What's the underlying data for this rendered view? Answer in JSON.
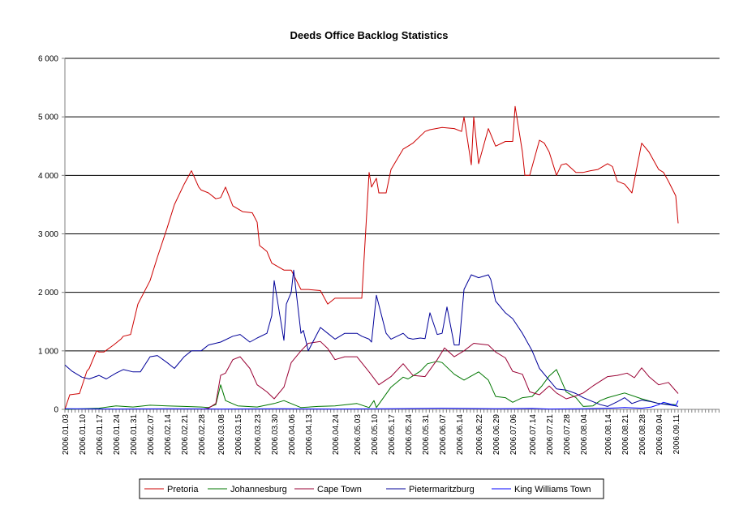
{
  "chart_data": {
    "type": "line",
    "title": "Deeds Office Backlog Statistics",
    "xlabel": "",
    "ylabel": "",
    "ylim": [
      0,
      6000
    ],
    "yticks": [
      0,
      1000,
      2000,
      3000,
      4000,
      5000,
      6000
    ],
    "ytick_labels": [
      "0",
      "1 000",
      "2 000",
      "3 000",
      "4 000",
      "5 000",
      "6 000"
    ],
    "xlim": [
      "2006.01.03",
      "2006.09.29"
    ],
    "xtick_labels": [
      "2006.01.03",
      "2006.01.10",
      "2006.01.17",
      "2006.01.24",
      "2006.01.31",
      "2006.02.07",
      "2006.02.14",
      "2006.02.21",
      "2006.02.28",
      "2006.03.08",
      "2006.03.15",
      "2006.03.23",
      "2006.03.30",
      "2006.04.06",
      "2006.04.13",
      "2006.04.24",
      "2006.05.03",
      "2006.05.10",
      "2006.05.17",
      "2006.05.24",
      "2006.05.31",
      "2006.06.07",
      "2006.06.14",
      "2006.06.22",
      "2006.06.29",
      "2006.07.06",
      "2006.07.14",
      "2006.07.21",
      "2006.07.28",
      "2006.08.04",
      "2006.08.14",
      "2006.08.21",
      "2006.08.28",
      "2006.09.04",
      "2006.09.11"
    ],
    "grid": "horizontal",
    "legend": "bottom",
    "series": [
      {
        "name": "Pretoria",
        "color": "#cc0000",
        "x": [
          "2006.01.03",
          "2006.01.05",
          "2006.01.09",
          "2006.01.12",
          "2006.01.13",
          "2006.01.16",
          "2006.01.17",
          "2006.01.19",
          "2006.01.23",
          "2006.01.26",
          "2006.01.27",
          "2006.01.30",
          "2006.02.02",
          "2006.02.07",
          "2006.02.10",
          "2006.02.14",
          "2006.02.17",
          "2006.02.21",
          "2006.02.24",
          "2006.02.27",
          "2006.02.28",
          "2006.03.03",
          "2006.03.06",
          "2006.03.08",
          "2006.03.10",
          "2006.03.13",
          "2006.03.17",
          "2006.03.21",
          "2006.03.23",
          "2006.03.24",
          "2006.03.27",
          "2006.03.29",
          "2006.04.03",
          "2006.04.06",
          "2006.04.10",
          "2006.04.13",
          "2006.04.18",
          "2006.04.21",
          "2006.04.24",
          "2006.04.28",
          "2006.05.05",
          "2006.05.08",
          "2006.05.09",
          "2006.05.11",
          "2006.05.12",
          "2006.05.15",
          "2006.05.17",
          "2006.05.22",
          "2006.05.24",
          "2006.05.26",
          "2006.05.31",
          "2006.06.02",
          "2006.06.07",
          "2006.06.12",
          "2006.06.15",
          "2006.06.16",
          "2006.06.19",
          "2006.06.20",
          "2006.06.22",
          "2006.06.26",
          "2006.06.29",
          "2006.07.03",
          "2006.07.06",
          "2006.07.07",
          "2006.07.10",
          "2006.07.11",
          "2006.07.13",
          "2006.07.17",
          "2006.07.19",
          "2006.07.21",
          "2006.07.24",
          "2006.07.26",
          "2006.07.28",
          "2006.08.01",
          "2006.08.04",
          "2006.08.07",
          "2006.08.10",
          "2006.08.14",
          "2006.08.16",
          "2006.08.18",
          "2006.08.21",
          "2006.08.24",
          "2006.08.28",
          "2006.08.31",
          "2006.09.04",
          "2006.09.06",
          "2006.09.08",
          "2006.09.11",
          "2006.09.12"
        ],
        "values": [
          0,
          250,
          270,
          650,
          700,
          1000,
          980,
          980,
          1100,
          1200,
          1250,
          1280,
          1800,
          2200,
          2600,
          3100,
          3500,
          3850,
          4080,
          3800,
          3750,
          3700,
          3600,
          3620,
          3800,
          3480,
          3380,
          3360,
          3200,
          2800,
          2700,
          2500,
          2380,
          2380,
          2050,
          2050,
          2030,
          1800,
          1900,
          1900,
          1900,
          4050,
          3800,
          3950,
          3700,
          3700,
          4100,
          4450,
          4500,
          4550,
          4750,
          4780,
          4820,
          4800,
          4750,
          5000,
          4180,
          5000,
          4200,
          4800,
          4500,
          4580,
          4580,
          5180,
          4400,
          4000,
          4000,
          4600,
          4550,
          4400,
          4000,
          4180,
          4200,
          4050,
          4050,
          4080,
          4100,
          4200,
          4150,
          3900,
          3850,
          3700,
          4550,
          4400,
          4100,
          4050,
          3900,
          3650,
          3180
        ]
      },
      {
        "name": "Johannesburg",
        "color": "#007700",
        "x": [
          "2006.01.03",
          "2006.01.17",
          "2006.01.24",
          "2006.01.31",
          "2006.02.07",
          "2006.02.14",
          "2006.02.21",
          "2006.02.28",
          "2006.03.03",
          "2006.03.06",
          "2006.03.08",
          "2006.03.10",
          "2006.03.15",
          "2006.03.23",
          "2006.03.30",
          "2006.04.03",
          "2006.04.10",
          "2006.04.17",
          "2006.04.24",
          "2006.05.03",
          "2006.05.08",
          "2006.05.10",
          "2006.05.11",
          "2006.05.17",
          "2006.05.22",
          "2006.05.24",
          "2006.05.29",
          "2006.06.01",
          "2006.06.05",
          "2006.06.07",
          "2006.06.12",
          "2006.06.16",
          "2006.06.22",
          "2006.06.26",
          "2006.06.29",
          "2006.07.03",
          "2006.07.06",
          "2006.07.10",
          "2006.07.14",
          "2006.07.18",
          "2006.07.21",
          "2006.07.24",
          "2006.07.28",
          "2006.08.01",
          "2006.08.04",
          "2006.08.08",
          "2006.08.11",
          "2006.08.14",
          "2006.08.21",
          "2006.08.28",
          "2006.09.04",
          "2006.09.11"
        ],
        "values": [
          0,
          20,
          60,
          40,
          70,
          60,
          50,
          40,
          30,
          80,
          420,
          150,
          60,
          40,
          100,
          150,
          30,
          50,
          60,
          100,
          30,
          150,
          30,
          380,
          550,
          520,
          650,
          780,
          820,
          800,
          600,
          500,
          640,
          500,
          220,
          200,
          120,
          200,
          220,
          400,
          570,
          680,
          300,
          200,
          50,
          60,
          150,
          200,
          280,
          180,
          100,
          80
        ]
      },
      {
        "name": "Cape Town",
        "color": "#990033",
        "x": [
          "2006.02.28",
          "2006.03.03",
          "2006.03.06",
          "2006.03.08",
          "2006.03.10",
          "2006.03.13",
          "2006.03.16",
          "2006.03.20",
          "2006.03.23",
          "2006.03.27",
          "2006.03.30",
          "2006.04.03",
          "2006.04.06",
          "2006.04.10",
          "2006.04.13",
          "2006.04.18",
          "2006.04.21",
          "2006.04.24",
          "2006.04.28",
          "2006.05.03",
          "2006.05.08",
          "2006.05.12",
          "2006.05.17",
          "2006.05.22",
          "2006.05.26",
          "2006.05.31",
          "2006.06.05",
          "2006.06.08",
          "2006.06.12",
          "2006.06.16",
          "2006.06.20",
          "2006.06.26",
          "2006.06.29",
          "2006.07.03",
          "2006.07.06",
          "2006.07.10",
          "2006.07.13",
          "2006.07.17",
          "2006.07.21",
          "2006.07.24",
          "2006.07.28",
          "2006.08.01",
          "2006.08.04",
          "2006.08.08",
          "2006.08.14",
          "2006.08.18",
          "2006.08.22",
          "2006.08.25",
          "2006.08.28",
          "2006.08.31",
          "2006.09.04",
          "2006.09.08",
          "2006.09.12"
        ],
        "values": [
          0,
          20,
          100,
          580,
          620,
          850,
          900,
          700,
          420,
          300,
          180,
          380,
          800,
          1000,
          1130,
          1160,
          1040,
          850,
          900,
          900,
          640,
          420,
          560,
          780,
          580,
          560,
          850,
          1050,
          900,
          1000,
          1130,
          1100,
          980,
          880,
          650,
          600,
          300,
          250,
          400,
          280,
          180,
          230,
          280,
          400,
          560,
          580,
          620,
          540,
          710,
          560,
          420,
          460,
          270
        ]
      },
      {
        "name": "Pietermaritzburg",
        "color": "#000099",
        "x": [
          "2006.01.03",
          "2006.01.06",
          "2006.01.10",
          "2006.01.13",
          "2006.01.17",
          "2006.01.20",
          "2006.01.24",
          "2006.01.27",
          "2006.01.31",
          "2006.02.03",
          "2006.02.07",
          "2006.02.10",
          "2006.02.14",
          "2006.02.17",
          "2006.02.21",
          "2006.02.24",
          "2006.02.28",
          "2006.03.03",
          "2006.03.08",
          "2006.03.13",
          "2006.03.16",
          "2006.03.20",
          "2006.03.23",
          "2006.03.27",
          "2006.03.29",
          "2006.03.30",
          "2006.04.03",
          "2006.04.04",
          "2006.04.06",
          "2006.04.07",
          "2006.04.10",
          "2006.04.11",
          "2006.04.13",
          "2006.04.18",
          "2006.04.21",
          "2006.04.24",
          "2006.04.28",
          "2006.05.03",
          "2006.05.05",
          "2006.05.08",
          "2006.05.09",
          "2006.05.11",
          "2006.05.15",
          "2006.05.17",
          "2006.05.22",
          "2006.05.24",
          "2006.05.26",
          "2006.05.29",
          "2006.05.31",
          "2006.06.02",
          "2006.06.05",
          "2006.06.07",
          "2006.06.09",
          "2006.06.12",
          "2006.06.14",
          "2006.06.16",
          "2006.06.19",
          "2006.06.22",
          "2006.06.26",
          "2006.06.27",
          "2006.06.29",
          "2006.07.03",
          "2006.07.06",
          "2006.07.10",
          "2006.07.14",
          "2006.07.17",
          "2006.07.21",
          "2006.07.24",
          "2006.07.28",
          "2006.08.01",
          "2006.08.04",
          "2006.08.08",
          "2006.08.11",
          "2006.08.14",
          "2006.08.18",
          "2006.08.21",
          "2006.08.24",
          "2006.08.28",
          "2006.09.01",
          "2006.09.04",
          "2006.09.08",
          "2006.09.11",
          "2006.09.12"
        ],
        "values": [
          760,
          650,
          550,
          520,
          580,
          520,
          620,
          680,
          640,
          640,
          900,
          920,
          800,
          700,
          900,
          1000,
          1000,
          1100,
          1150,
          1250,
          1280,
          1150,
          1220,
          1300,
          1600,
          2200,
          1180,
          1800,
          2000,
          2380,
          1300,
          1350,
          1000,
          1400,
          1300,
          1200,
          1300,
          1300,
          1250,
          1200,
          1150,
          1950,
          1300,
          1200,
          1300,
          1220,
          1200,
          1220,
          1210,
          1650,
          1280,
          1300,
          1750,
          1100,
          1100,
          2050,
          2300,
          2250,
          2300,
          2220,
          1850,
          1650,
          1550,
          1300,
          1000,
          700,
          500,
          350,
          330,
          270,
          200,
          130,
          80,
          50,
          130,
          200,
          100,
          160,
          130,
          100,
          80,
          60,
          50
        ]
      },
      {
        "name": "King Williams Town",
        "color": "#0000ff",
        "x": [
          "2006.01.03",
          "2006.01.24",
          "2006.02.14",
          "2006.03.08",
          "2006.04.03",
          "2006.04.24",
          "2006.05.17",
          "2006.06.07",
          "2006.06.29",
          "2006.07.14",
          "2006.07.21",
          "2006.08.04",
          "2006.08.14",
          "2006.08.21",
          "2006.08.28",
          "2006.09.01",
          "2006.09.04",
          "2006.09.06",
          "2006.09.08",
          "2006.09.11",
          "2006.09.12"
        ],
        "values": [
          10,
          5,
          10,
          5,
          10,
          5,
          10,
          20,
          10,
          15,
          5,
          10,
          20,
          30,
          20,
          40,
          80,
          120,
          100,
          60,
          150
        ]
      }
    ]
  }
}
